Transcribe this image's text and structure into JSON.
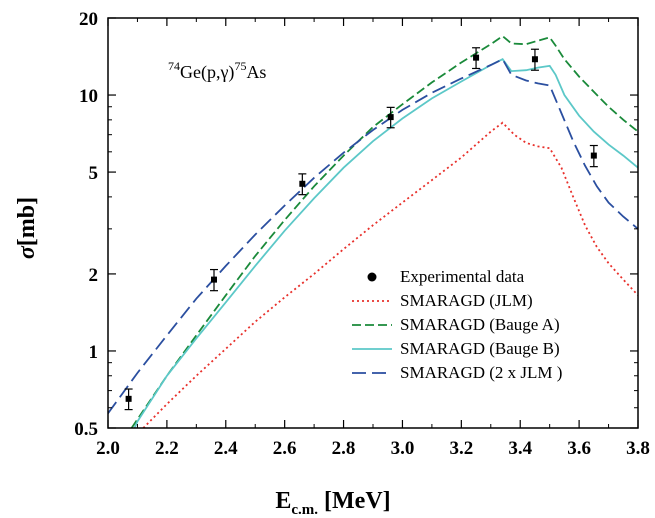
{
  "chart_data": {
    "type": "line",
    "title": "",
    "annotation": {
      "prefix_sup": "74",
      "main": "Ge(p,γ)",
      "suffix_sup": "75",
      "suffix": "As"
    },
    "xlabel": {
      "main": "E",
      "sub": "c.m.",
      "unit": "[MeV]"
    },
    "ylabel": {
      "symbol": "σ",
      "unit": "[mb]"
    },
    "xlim": [
      2.0,
      3.8
    ],
    "ylim": [
      0.5,
      20
    ],
    "yscale": "log",
    "x_ticks": [
      "2.0",
      "2.2",
      "2.4",
      "2.6",
      "2.8",
      "3.0",
      "3.2",
      "3.4",
      "3.6",
      "3.8"
    ],
    "y_ticks": [
      {
        "value": 0.5,
        "label": "0.5"
      },
      {
        "value": 1,
        "label": "1"
      },
      {
        "value": 2,
        "label": "2"
      },
      {
        "value": 5,
        "label": "5"
      },
      {
        "value": 10,
        "label": "10"
      },
      {
        "value": 20,
        "label": "20"
      }
    ],
    "legend_position": "bottom-right",
    "experimental": {
      "name": "Experimental data",
      "points": [
        {
          "x": 2.07,
          "y": 0.65,
          "err": 0.06
        },
        {
          "x": 2.36,
          "y": 1.9,
          "err": 0.18
        },
        {
          "x": 2.66,
          "y": 4.5,
          "err": 0.42
        },
        {
          "x": 2.96,
          "y": 8.2,
          "err": 0.75
        },
        {
          "x": 3.25,
          "y": 14.0,
          "err": 1.3
        },
        {
          "x": 3.45,
          "y": 13.8,
          "err": 1.3
        },
        {
          "x": 3.65,
          "y": 5.8,
          "err": 0.55
        }
      ]
    },
    "series": [
      {
        "name": "SMARAGD (JLM)",
        "color": "#e8302b",
        "dash": "2,3",
        "x": [
          2.12,
          2.2,
          2.3,
          2.4,
          2.5,
          2.6,
          2.7,
          2.8,
          2.9,
          3.0,
          3.1,
          3.2,
          3.3,
          3.34,
          3.38,
          3.42,
          3.46,
          3.5,
          3.54,
          3.58,
          3.62,
          3.66,
          3.7,
          3.75,
          3.8
        ],
        "y": [
          0.5,
          0.62,
          0.8,
          1.02,
          1.3,
          1.62,
          2.0,
          2.5,
          3.1,
          3.8,
          4.65,
          5.7,
          7.2,
          7.8,
          7.0,
          6.5,
          6.3,
          6.2,
          5.2,
          4.0,
          3.1,
          2.55,
          2.2,
          1.9,
          1.65
        ]
      },
      {
        "name": "SMARAGD (Bauge A)",
        "color": "#1a8a3a",
        "dash": "9,4",
        "x": [
          2.08,
          2.1,
          2.2,
          2.3,
          2.4,
          2.5,
          2.6,
          2.7,
          2.8,
          2.9,
          3.0,
          3.1,
          3.2,
          3.3,
          3.34,
          3.37,
          3.42,
          3.46,
          3.5,
          3.52,
          3.55,
          3.6,
          3.65,
          3.7,
          3.75,
          3.8
        ],
        "y": [
          0.5,
          0.54,
          0.8,
          1.15,
          1.65,
          2.35,
          3.25,
          4.4,
          5.8,
          7.5,
          9.2,
          11.2,
          13.4,
          15.8,
          17.0,
          15.9,
          15.8,
          16.3,
          16.8,
          15.6,
          13.8,
          11.8,
          10.3,
          9.0,
          8.0,
          7.2
        ]
      },
      {
        "name": "SMARAGD (Bauge B)",
        "color": "#5cc8c8",
        "dash": "",
        "x": [
          2.09,
          2.1,
          2.2,
          2.3,
          2.4,
          2.5,
          2.6,
          2.7,
          2.8,
          2.9,
          3.0,
          3.1,
          3.2,
          3.3,
          3.34,
          3.37,
          3.42,
          3.46,
          3.5,
          3.52,
          3.55,
          3.6,
          3.65,
          3.7,
          3.75,
          3.8
        ],
        "y": [
          0.5,
          0.53,
          0.8,
          1.12,
          1.55,
          2.15,
          2.95,
          3.95,
          5.2,
          6.6,
          8.1,
          9.7,
          11.3,
          13.1,
          13.8,
          12.4,
          12.5,
          12.8,
          13.0,
          12.0,
          10.0,
          8.3,
          7.2,
          6.4,
          5.8,
          5.2
        ]
      },
      {
        "name": "SMARAGD (2 x JLM )",
        "color": "#2b4fa0",
        "dash": "14,6",
        "x": [
          2.0,
          2.1,
          2.2,
          2.3,
          2.4,
          2.5,
          2.6,
          2.7,
          2.8,
          2.9,
          3.0,
          3.1,
          3.2,
          3.3,
          3.34,
          3.37,
          3.42,
          3.46,
          3.5,
          3.54,
          3.58,
          3.62,
          3.66,
          3.7,
          3.75,
          3.8
        ],
        "y": [
          0.57,
          0.82,
          1.15,
          1.6,
          2.15,
          2.85,
          3.7,
          4.75,
          5.95,
          7.3,
          8.75,
          10.2,
          11.6,
          13.1,
          13.8,
          12.0,
          11.4,
          11.1,
          10.9,
          8.5,
          6.6,
          5.3,
          4.4,
          3.8,
          3.35,
          3.0
        ]
      }
    ]
  }
}
